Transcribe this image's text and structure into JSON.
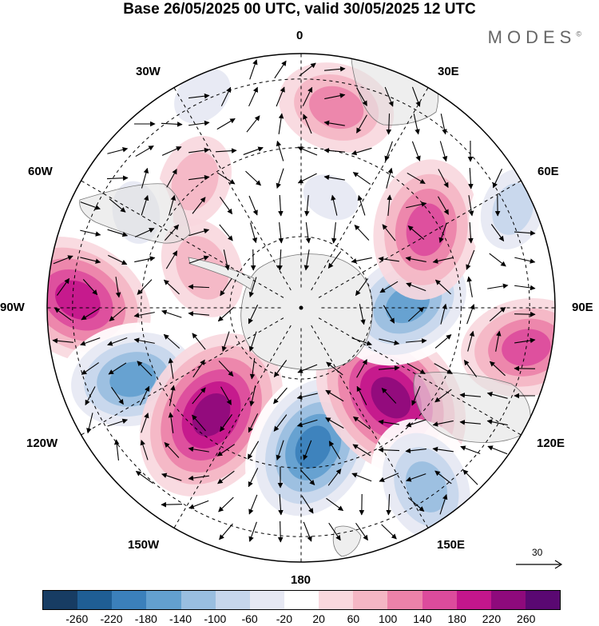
{
  "title": "Base 26/05/2025 00 UTC, valid 30/05/2025 12 UTC",
  "brand": "MODES",
  "brand_mark": "©",
  "lon_labels": {
    "n0": "0",
    "n30e": "30E",
    "n60e": "60E",
    "n90e": "90E",
    "n120e": "120E",
    "n150e": "150E",
    "n180": "180",
    "n150w": "150W",
    "n120w": "120W",
    "n90w": "90W",
    "n60w": "60W",
    "n30w": "30W"
  },
  "reference_vector": "30",
  "colorbar": {
    "colors": [
      "#173c63",
      "#1f5e94",
      "#3b80bb",
      "#63a0cf",
      "#99bee0",
      "#c6d6ec",
      "#e6e8f3",
      "#ffffff",
      "#f9d8de",
      "#f4b6c4",
      "#ec82a9",
      "#dc4b9c",
      "#c3168c",
      "#8e0a7c",
      "#5a0872"
    ],
    "labels": [
      "-260",
      "-220",
      "-180",
      "-140",
      "-100",
      "-60",
      "-20",
      "20",
      "60",
      "100",
      "140",
      "180",
      "220",
      "260"
    ]
  },
  "anomalies": [
    {
      "lon": 10,
      "r": 0.8,
      "value": 120
    },
    {
      "lon": -25,
      "r": 0.92,
      "value": -80
    },
    {
      "lon": -40,
      "r": 0.65,
      "value": 70
    },
    {
      "lon": -60,
      "r": 0.75,
      "value": -80
    },
    {
      "lon": -68,
      "r": 0.42,
      "value": 90
    },
    {
      "lon": -88,
      "r": 0.88,
      "value": 200
    },
    {
      "lon": -113,
      "r": 0.72,
      "value": -190
    },
    {
      "lon": -140,
      "r": 0.55,
      "value": 240
    },
    {
      "lon": 175,
      "r": 0.55,
      "value": -230
    },
    {
      "lon": 135,
      "r": 0.5,
      "value": 240
    },
    {
      "lon": 145,
      "r": 0.86,
      "value": -170
    },
    {
      "lon": 100,
      "r": 0.9,
      "value": 150
    },
    {
      "lon": 88,
      "r": 0.42,
      "value": -190
    },
    {
      "lon": 58,
      "r": 0.58,
      "value": 170
    },
    {
      "lon": 65,
      "r": 0.92,
      "value": -110
    },
    {
      "lon": 15,
      "r": 0.45,
      "value": -60
    }
  ]
}
